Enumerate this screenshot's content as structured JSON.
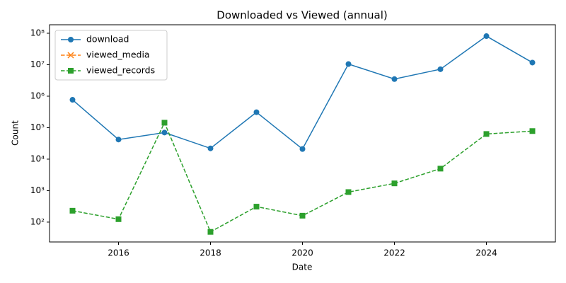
{
  "chart_data": {
    "type": "line",
    "title": "Downloaded vs Viewed (annual)",
    "xlabel": "Date",
    "ylabel": "Count",
    "x": [
      2015,
      2016,
      2017,
      2018,
      2019,
      2020,
      2021,
      2022,
      2023,
      2024,
      2025
    ],
    "series": [
      {
        "name": "download",
        "color": "#1f77b4",
        "marker": "o",
        "linestyle": "solid",
        "values": [
          770000,
          42000,
          70000,
          22000,
          310000,
          21000,
          10500000,
          3500000,
          7200000,
          81000000,
          11700000
        ]
      },
      {
        "name": "viewed_media",
        "color": "#ff7f0e",
        "marker": "x",
        "linestyle": "dashed",
        "values": [
          null,
          null,
          null,
          null,
          null,
          null,
          null,
          null,
          null,
          null,
          null
        ]
      },
      {
        "name": "viewed_records",
        "color": "#2ca02c",
        "marker": "s",
        "linestyle": "dashed",
        "values": [
          230,
          124,
          144000,
          49,
          310,
          160,
          900,
          1700,
          5000,
          63000,
          78000
        ]
      }
    ],
    "xlim": [
      2014.5,
      2025.5
    ],
    "xticks": [
      2016,
      2018,
      2020,
      2022,
      2024
    ],
    "ylim": [
      23.4,
      186000000
    ],
    "yscale": "log",
    "yticks": [
      {
        "value": 100,
        "label": "10²"
      },
      {
        "value": 1000,
        "label": "10³"
      },
      {
        "value": 10000,
        "label": "10⁴"
      },
      {
        "value": 100000,
        "label": "10⁵"
      },
      {
        "value": 1000000,
        "label": "10⁶"
      },
      {
        "value": 10000000,
        "label": "10⁷"
      },
      {
        "value": 100000000,
        "label": "10⁸"
      }
    ],
    "grid": false,
    "legend": "upper left"
  }
}
